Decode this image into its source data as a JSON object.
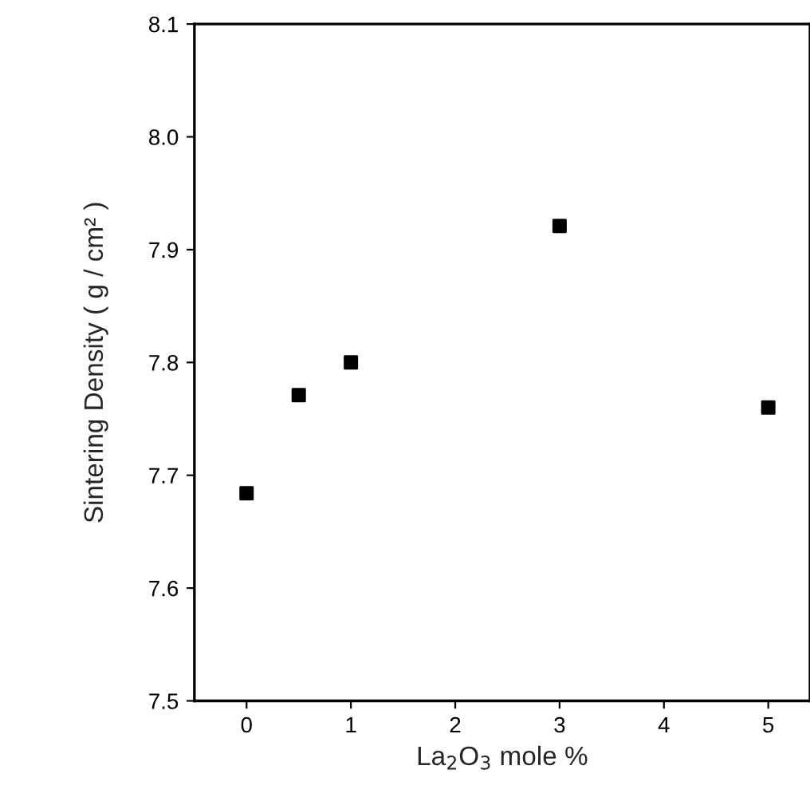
{
  "chart_data": {
    "type": "scatter",
    "xlabel": "La$_{2}$O$_{3}$ mole %",
    "ylabel": "Sintering Density ( g / cm² )",
    "x": [
      0,
      0.5,
      1,
      3,
      5
    ],
    "series": [
      {
        "color": "#000000",
        "values": [
          7.684,
          7.771,
          7.8,
          7.921,
          7.76
        ]
      }
    ],
    "xlim": [
      -0.5,
      5.4
    ],
    "xticks": [
      0,
      1,
      2,
      3,
      4,
      5
    ],
    "ylim": [
      7.5,
      8.1
    ],
    "yticks": [
      7.5,
      7.6,
      7.7,
      7.8,
      7.9,
      {
        "value": 8.0,
        "label": "8.0"
      },
      8.1
    ],
    "marker": "square",
    "grid": false,
    "legend": false
  }
}
